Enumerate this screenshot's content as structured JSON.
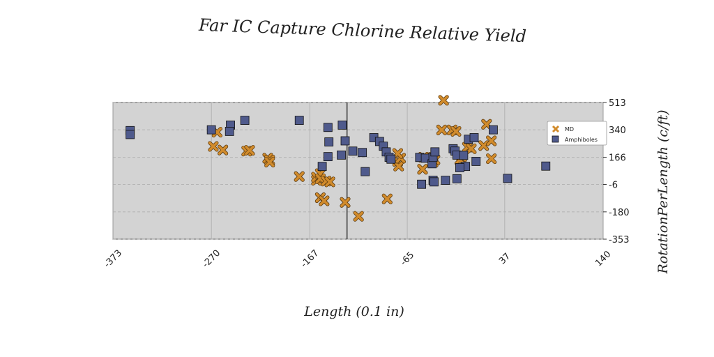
{
  "chart_data": {
    "type": "scatter",
    "title": "Far IC Capture Chlorine Relative Yield",
    "xlabel": "Length (0.1 in)",
    "ylabel": "RotationPerLength (c/ft)",
    "xlim": [
      -373,
      140
    ],
    "ylim": [
      -353,
      513
    ],
    "xticks": [
      -373,
      -270,
      -167,
      -65,
      37,
      140
    ],
    "yticks": [
      -353,
      -180,
      -6,
      166,
      340,
      513
    ],
    "grid": true,
    "legend_position": "top-right",
    "vline_x": -128,
    "series": [
      {
        "name": "MD",
        "marker": "x",
        "color": "#d18b2c",
        "points": [
          [
            -264,
            325
          ],
          [
            -268,
            235
          ],
          [
            -258,
            212
          ],
          [
            -233,
            205
          ],
          [
            -230,
            210
          ],
          [
            -211,
            160
          ],
          [
            -209,
            148
          ],
          [
            -209,
            135
          ],
          [
            -178,
            44
          ],
          [
            -160,
            20
          ],
          [
            -160,
            40
          ],
          [
            -156,
            62
          ],
          [
            -156,
            30
          ],
          [
            -150,
            15
          ],
          [
            -146,
            10
          ],
          [
            -156,
            -90
          ],
          [
            -152,
            -110
          ],
          [
            -130,
            -120
          ],
          [
            -116,
            -208
          ],
          [
            -86,
            -98
          ],
          [
            -75,
            140
          ],
          [
            -74,
            110
          ],
          [
            -72,
            160
          ],
          [
            -75,
            190
          ],
          [
            -48,
            166
          ],
          [
            -49,
            90
          ],
          [
            -38,
            165
          ],
          [
            -38,
            135
          ],
          [
            -36,
            150
          ],
          [
            -29,
            339
          ],
          [
            -18,
            339
          ],
          [
            -27,
            527
          ],
          [
            -14,
            330
          ],
          [
            -8,
            170
          ],
          [
            -2,
            230
          ],
          [
            2,
            220
          ],
          [
            -10,
            150
          ],
          [
            15,
            240
          ],
          [
            18,
            375
          ],
          [
            23,
            270
          ],
          [
            23,
            157
          ]
        ]
      },
      {
        "name": "Amphiboles",
        "marker": "s",
        "color": "#4f5a8c",
        "points": [
          [
            -355,
            335
          ],
          [
            -355,
            310
          ],
          [
            -270,
            340
          ],
          [
            -250,
            370
          ],
          [
            -251,
            330
          ],
          [
            -235,
            400
          ],
          [
            -178,
            400
          ],
          [
            -148,
            355
          ],
          [
            -147,
            263
          ],
          [
            -130,
            270
          ],
          [
            -134,
            180
          ],
          [
            -133,
            370
          ],
          [
            -148,
            170
          ],
          [
            -154,
            108
          ],
          [
            -122,
            205
          ],
          [
            -112,
            196
          ],
          [
            -109,
            75
          ],
          [
            -100,
            290
          ],
          [
            -94,
            266
          ],
          [
            -90,
            236
          ],
          [
            -87,
            200
          ],
          [
            -84,
            166
          ],
          [
            -82,
            154
          ],
          [
            -52,
            165
          ],
          [
            -46,
            160
          ],
          [
            -39,
            125
          ],
          [
            -38,
            165
          ],
          [
            -36,
            200
          ],
          [
            -17,
            220
          ],
          [
            -15,
            205
          ],
          [
            -13,
            180
          ],
          [
            -6,
            178
          ],
          [
            -4,
            108
          ],
          [
            7,
            140
          ],
          [
            -38,
            20
          ],
          [
            -1,
            280
          ],
          [
            5,
            290
          ],
          [
            -10,
            100
          ],
          [
            -13,
            30
          ],
          [
            -25,
            20
          ],
          [
            25,
            340
          ],
          [
            40,
            32
          ],
          [
            80,
            110
          ],
          [
            -50,
            -5
          ],
          [
            -37,
            10
          ]
        ]
      }
    ]
  }
}
